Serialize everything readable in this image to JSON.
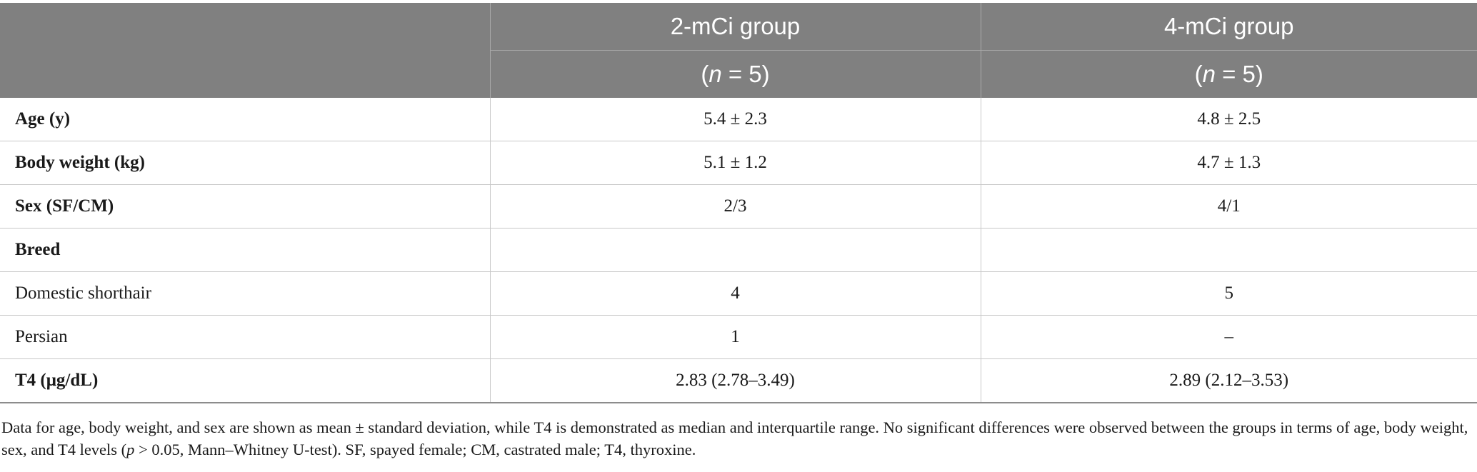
{
  "table": {
    "columns": [
      {
        "title": "2-mCi group",
        "n_prefix": "(",
        "n_var": "n",
        "n_suffix": " = 5)"
      },
      {
        "title": "4-mCi group",
        "n_prefix": "(",
        "n_var": "n",
        "n_suffix": " = 5)"
      }
    ],
    "rows": [
      {
        "label": "Age (y)",
        "bold": true,
        "values": [
          "5.4 ± 2.3",
          "4.8 ± 2.5"
        ]
      },
      {
        "label": "Body weight (kg)",
        "bold": true,
        "values": [
          "5.1 ± 1.2",
          "4.7 ± 1.3"
        ]
      },
      {
        "label": "Sex (SF/CM)",
        "bold": true,
        "values": [
          "2/3",
          "4/1"
        ]
      },
      {
        "label": "Breed",
        "bold": true,
        "values": [
          "",
          ""
        ]
      },
      {
        "label": "Domestic shorthair",
        "bold": false,
        "values": [
          "4",
          "5"
        ]
      },
      {
        "label": "Persian",
        "bold": false,
        "values": [
          "1",
          "–"
        ]
      },
      {
        "label": "T4 (μg/dL)",
        "bold": true,
        "values": [
          "2.83 (2.78–3.49)",
          "2.89 (2.12–3.53)"
        ]
      }
    ]
  },
  "footnote": {
    "part1": "Data for age, body weight, and sex are shown as mean ± standard deviation, while T4 is demonstrated as median and interquartile range. No significant differences were observed between the groups in terms of age, body weight, sex, and T4 levels (",
    "p_var": "p",
    "part2": " > 0.05, Mann–Whitney U-test). SF, spayed female; CM, castrated male; T4, thyroxine."
  }
}
